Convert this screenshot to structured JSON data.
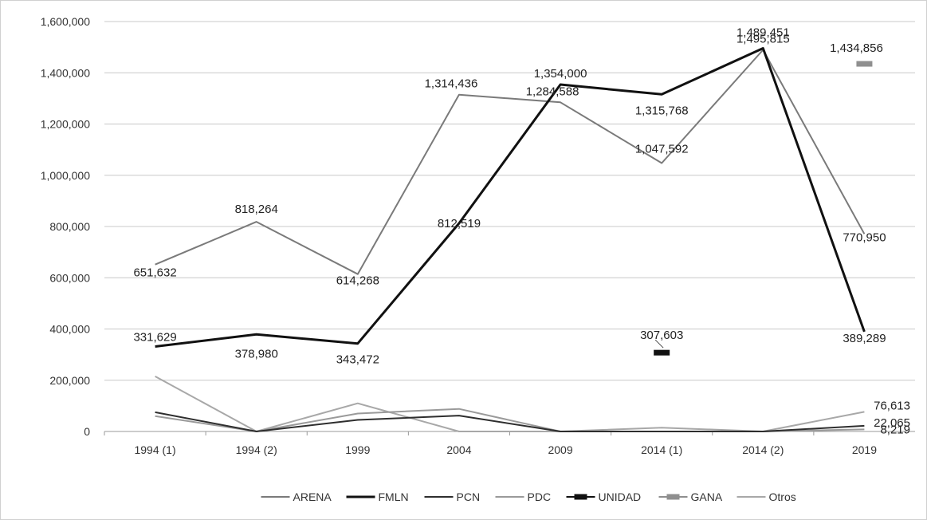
{
  "chart_data": {
    "type": "line",
    "title": "",
    "xlabel": "",
    "ylabel": "",
    "categories": [
      "1994 (1)",
      "1994 (2)",
      "1999",
      "2004",
      "2009",
      "2014 (1)",
      "2014 (2)",
      "2019"
    ],
    "ylim": [
      0,
      1600000
    ],
    "yticks": [
      0,
      200000,
      400000,
      600000,
      800000,
      1000000,
      1200000,
      1400000,
      1600000
    ],
    "ytick_labels": [
      "0",
      "200,000",
      "400,000",
      "600,000",
      "800,000",
      "1,000,000",
      "1,200,000",
      "1,400,000",
      "1,600,000"
    ],
    "grid": true,
    "legend_position": "bottom",
    "series": [
      {
        "name": "ARENA",
        "color": "#7a7a7a",
        "style": "line",
        "values": [
          651632,
          818264,
          614268,
          1314436,
          1284588,
          1047592,
          1489451,
          770950
        ],
        "labels": [
          "651,632",
          "818,264",
          "614,268",
          "1,314,436",
          "1,284,588",
          "1,047,592",
          "1,489,451",
          "770,950"
        ]
      },
      {
        "name": "FMLN",
        "color": "#111111",
        "style": "line",
        "values": [
          331629,
          378980,
          343472,
          812519,
          1354000,
          1315768,
          1495815,
          389289
        ],
        "labels": [
          "331,629",
          "378,980",
          "343,472",
          "812,519",
          "1,354,000",
          "1,315,768",
          "1,495,815",
          "389,289"
        ]
      },
      {
        "name": "PCN",
        "color": "#2e2e2e",
        "style": "line",
        "values": [
          75000,
          0,
          45000,
          62000,
          0,
          0,
          0,
          22065
        ],
        "labels": [
          "",
          "",
          "",
          "",
          "",
          "",
          "",
          "22,065"
        ]
      },
      {
        "name": "PDC",
        "color": "#9a9a9a",
        "style": "line",
        "values": [
          60000,
          0,
          70000,
          88000,
          0,
          0,
          0,
          8219
        ],
        "labels": [
          "",
          "",
          "",
          "",
          "",
          "",
          "",
          "8,219"
        ]
      },
      {
        "name": "UNIDAD",
        "color": "#111111",
        "style": "marker",
        "values": [
          null,
          null,
          null,
          null,
          null,
          307603,
          null,
          null
        ],
        "labels": [
          "",
          "",
          "",
          "",
          "",
          "307,603",
          "",
          ""
        ]
      },
      {
        "name": "GANA",
        "color": "#8f8f8f",
        "style": "marker",
        "values": [
          null,
          null,
          null,
          null,
          null,
          null,
          null,
          1434856
        ],
        "labels": [
          "",
          "",
          "",
          "",
          "",
          "",
          "",
          "1,434,856"
        ]
      },
      {
        "name": "Otros",
        "color": "#a8a8a8",
        "style": "line",
        "values": [
          215000,
          0,
          110000,
          0,
          0,
          15000,
          0,
          76613
        ],
        "labels": [
          "",
          "",
          "",
          "",
          "",
          "",
          "",
          "76,613"
        ]
      }
    ]
  }
}
